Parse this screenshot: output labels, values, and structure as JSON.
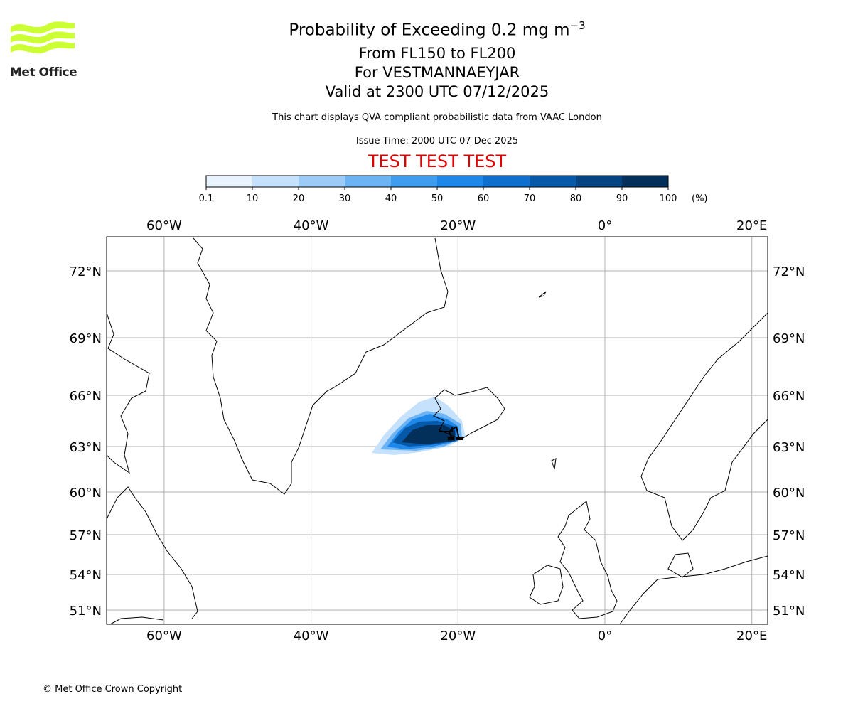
{
  "header": {
    "title_main": "Probability of Exceeding 0.2 mg m",
    "title_sup": "−3",
    "levels": "From FL150 to FL200",
    "location": "For VESTMANNAEYJAR",
    "valid": "Valid at 2300 UTC 07/12/2025",
    "note": "This chart displays QVA compliant probabilistic data from VAAC London",
    "issue": "Issue Time: 2000 UTC 07 Dec 2025",
    "test_banner": "TEST TEST TEST",
    "test_color": "#e00000"
  },
  "logo": {
    "text": "Met Office",
    "color": "#ccff33"
  },
  "footer": {
    "copyright": "© Met Office Crown Copyright"
  },
  "colorbar": {
    "unit": "(%)",
    "ticks": [
      "0.1",
      "10",
      "20",
      "30",
      "40",
      "50",
      "60",
      "70",
      "80",
      "90",
      "100"
    ],
    "colors": [
      "#e8f3fe",
      "#c6e1fb",
      "#9ccbf7",
      "#6cb3f4",
      "#3f9df0",
      "#1e87ea",
      "#0e6fce",
      "#0658a8",
      "#044482",
      "#03305b"
    ]
  },
  "map": {
    "lon_ticks": [
      {
        "value": -60,
        "label": "60°W"
      },
      {
        "value": -40,
        "label": "40°W"
      },
      {
        "value": -20,
        "label": "20°W"
      },
      {
        "value": 0,
        "label": "0°"
      },
      {
        "value": 20,
        "label": "20°E"
      }
    ],
    "lat_ticks": [
      {
        "value": 72,
        "label": "72°N"
      },
      {
        "value": 69,
        "label": "69°N"
      },
      {
        "value": 66,
        "label": "66°N"
      },
      {
        "value": 63,
        "label": "63°N"
      },
      {
        "value": 60,
        "label": "60°N"
      },
      {
        "value": 57,
        "label": "57°N"
      },
      {
        "value": 54,
        "label": "54°N"
      },
      {
        "value": 51,
        "label": "51°N"
      }
    ],
    "volcano": "Vestmannaeyjar"
  }
}
